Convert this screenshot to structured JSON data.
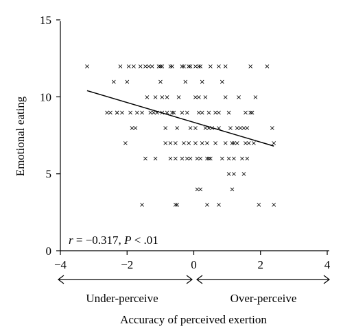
{
  "chart_data": {
    "type": "scatter",
    "xlabel": "Accuracy of perceived exertion",
    "ylabel": "Emotional eating",
    "xlim": [
      -4,
      4
    ],
    "ylim": [
      0,
      15
    ],
    "xticks": [
      "−4",
      "−2",
      "0",
      "2",
      "4"
    ],
    "yticks": [
      "0",
      "5",
      "10",
      "15"
    ],
    "annotation": {
      "r_symbol": "r",
      "r_value": " = −0.317, ",
      "p_symbol": "P",
      "p_value": " < .01"
    },
    "regions": {
      "left": "Under-perceive",
      "right": "Over-perceive"
    },
    "marker": "×",
    "trendline": {
      "x": [
        -3.2,
        2.4
      ],
      "y": [
        10.4,
        6.8
      ]
    },
    "points": [
      [
        -3.2,
        12
      ],
      [
        -2.2,
        12
      ],
      [
        -1.6,
        12
      ],
      [
        -1.45,
        12
      ],
      [
        -1.35,
        12
      ],
      [
        -1.05,
        12
      ],
      [
        -0.95,
        12
      ],
      [
        -0.7,
        12
      ],
      [
        -0.65,
        12
      ],
      [
        -0.35,
        12
      ],
      [
        -0.15,
        12
      ],
      [
        -0.1,
        12
      ],
      [
        0.05,
        12
      ],
      [
        0.15,
        12
      ],
      [
        0.2,
        12
      ],
      [
        0.5,
        12
      ],
      [
        0.75,
        12
      ],
      [
        0.95,
        12
      ],
      [
        1.7,
        12
      ],
      [
        2.2,
        12
      ],
      [
        -1.95,
        12
      ],
      [
        -1.8,
        12
      ],
      [
        -1.25,
        12
      ],
      [
        -1.0,
        12
      ],
      [
        -0.3,
        12
      ],
      [
        -2.0,
        11
      ],
      [
        -1.0,
        11
      ],
      [
        -0.25,
        11
      ],
      [
        0.25,
        11
      ],
      [
        0.85,
        11
      ],
      [
        -2.4,
        11
      ],
      [
        -1.4,
        10
      ],
      [
        -1.15,
        10
      ],
      [
        -0.95,
        10
      ],
      [
        -0.8,
        10
      ],
      [
        -0.45,
        10
      ],
      [
        0.05,
        10
      ],
      [
        0.15,
        10
      ],
      [
        0.35,
        10
      ],
      [
        0.95,
        10
      ],
      [
        1.35,
        10
      ],
      [
        1.85,
        10
      ],
      [
        -2.6,
        9
      ],
      [
        -2.5,
        9
      ],
      [
        -2.3,
        9
      ],
      [
        -2.15,
        9
      ],
      [
        -1.9,
        9
      ],
      [
        -1.7,
        9
      ],
      [
        -1.3,
        9
      ],
      [
        -1.2,
        9
      ],
      [
        -1.1,
        9
      ],
      [
        -0.95,
        9
      ],
      [
        -0.65,
        9
      ],
      [
        -0.6,
        9
      ],
      [
        -0.35,
        9
      ],
      [
        -0.2,
        9
      ],
      [
        0.15,
        9
      ],
      [
        0.25,
        9
      ],
      [
        0.65,
        9
      ],
      [
        0.75,
        9
      ],
      [
        1.05,
        9
      ],
      [
        1.55,
        9
      ],
      [
        1.7,
        9
      ],
      [
        1.75,
        9
      ],
      [
        -2.3,
        9
      ],
      [
        -1.55,
        9
      ],
      [
        -0.8,
        9
      ],
      [
        0.45,
        9
      ],
      [
        -1.85,
        8
      ],
      [
        -1.75,
        8
      ],
      [
        -0.85,
        8
      ],
      [
        -0.5,
        8
      ],
      [
        -0.1,
        8
      ],
      [
        0.35,
        8
      ],
      [
        0.45,
        8
      ],
      [
        0.55,
        8
      ],
      [
        0.75,
        8
      ],
      [
        1.1,
        8
      ],
      [
        1.3,
        8
      ],
      [
        1.5,
        8
      ],
      [
        1.6,
        8
      ],
      [
        2.35,
        8
      ],
      [
        1.4,
        8
      ],
      [
        0.05,
        8
      ],
      [
        -2.05,
        7
      ],
      [
        -0.85,
        7
      ],
      [
        -0.7,
        7
      ],
      [
        -0.3,
        7
      ],
      [
        -0.15,
        7
      ],
      [
        0.25,
        7
      ],
      [
        0.4,
        7
      ],
      [
        0.65,
        7
      ],
      [
        0.95,
        7
      ],
      [
        1.15,
        7
      ],
      [
        1.3,
        7
      ],
      [
        1.55,
        7
      ],
      [
        1.65,
        7
      ],
      [
        1.8,
        7
      ],
      [
        2.4,
        7
      ],
      [
        -0.55,
        7
      ],
      [
        0.05,
        7
      ],
      [
        1.2,
        7
      ],
      [
        -1.45,
        6
      ],
      [
        -1.15,
        6
      ],
      [
        -0.7,
        6
      ],
      [
        -0.55,
        6
      ],
      [
        -0.35,
        6
      ],
      [
        -0.1,
        6
      ],
      [
        0.1,
        6
      ],
      [
        0.2,
        6
      ],
      [
        0.45,
        6
      ],
      [
        0.5,
        6
      ],
      [
        0.85,
        6
      ],
      [
        1.05,
        6
      ],
      [
        1.2,
        6
      ],
      [
        1.45,
        6
      ],
      [
        1.6,
        6
      ],
      [
        -0.2,
        6
      ],
      [
        0.4,
        6
      ],
      [
        1.05,
        5
      ],
      [
        1.2,
        5
      ],
      [
        1.5,
        5
      ],
      [
        0.1,
        4
      ],
      [
        0.2,
        4
      ],
      [
        1.15,
        4
      ],
      [
        -1.55,
        3
      ],
      [
        -0.55,
        3
      ],
      [
        -0.5,
        3
      ],
      [
        0.4,
        3
      ],
      [
        0.75,
        3
      ],
      [
        1.95,
        3
      ],
      [
        2.4,
        3
      ]
    ]
  }
}
